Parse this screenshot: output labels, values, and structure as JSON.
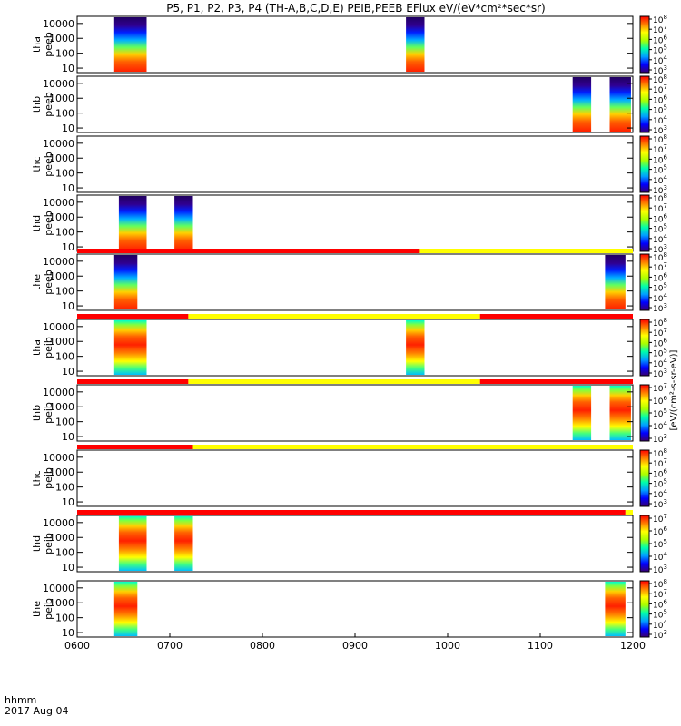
{
  "title": "P5, P1, P2, P3, P4 (TH-A,B,C,D,E) PEIB,PEEB EFlux eV/(eV*cm²*sec*sr)",
  "colorbar_unit_label": "[eV/(cm²-s-sr-eV)]",
  "time_axis": {
    "ticks": [
      "0600",
      "0700",
      "0800",
      "0900",
      "1000",
      "1100",
      "1200"
    ],
    "footer_label": "hhmm",
    "date_label": "2017 Aug 04"
  },
  "y_axis": {
    "ticks": [
      "10",
      "100",
      "1000",
      "10000"
    ],
    "scale": "log"
  },
  "chart_data": [
    {
      "type": "heatmap",
      "probe": "tha",
      "instrument": "peeb",
      "ylabel_line1": "tha",
      "ylabel_line2": "peeb",
      "xlim": [
        600,
        1200
      ],
      "ylim": [
        5,
        30000
      ],
      "y_scale": "log",
      "cbar_exponents": [
        3,
        4,
        5,
        6,
        7,
        8
      ],
      "bursts": [
        [
          640,
          675
        ],
        [
          955,
          975
        ]
      ],
      "mode_bar": null
    },
    {
      "type": "heatmap",
      "probe": "thb",
      "instrument": "peeb",
      "ylabel_line1": "thb",
      "ylabel_line2": "peeb",
      "xlim": [
        600,
        1200
      ],
      "ylim": [
        5,
        30000
      ],
      "y_scale": "log",
      "cbar_exponents": [
        3,
        4,
        5,
        6,
        7,
        8
      ],
      "bursts": [
        [
          1135,
          1155
        ],
        [
          1175,
          1198
        ]
      ],
      "mode_bar": null
    },
    {
      "type": "heatmap",
      "probe": "thc",
      "instrument": "peeb",
      "ylabel_line1": "thc",
      "ylabel_line2": "peeb",
      "xlim": [
        600,
        1200
      ],
      "ylim": [
        5,
        30000
      ],
      "y_scale": "log",
      "cbar_exponents": [
        3,
        4,
        5,
        6,
        7,
        8
      ],
      "bursts": [],
      "mode_bar": null
    },
    {
      "type": "heatmap",
      "probe": "thd",
      "instrument": "peeb",
      "ylabel_line1": "thd",
      "ylabel_line2": "peeb",
      "xlim": [
        600,
        1200
      ],
      "ylim": [
        5,
        30000
      ],
      "y_scale": "log",
      "cbar_exponents": [
        3,
        4,
        5,
        6,
        7,
        8
      ],
      "bursts": [
        [
          645,
          675
        ],
        [
          705,
          725
        ]
      ],
      "mode_bar": null
    },
    {
      "type": "heatmap",
      "probe": "the",
      "instrument": "peeb",
      "ylabel_line1": "the",
      "ylabel_line2": "peeb",
      "xlim": [
        600,
        1200
      ],
      "ylim": [
        5,
        30000
      ],
      "y_scale": "log",
      "cbar_exponents": [
        3,
        4,
        5,
        6,
        7,
        8
      ],
      "bursts": [
        [
          640,
          665
        ],
        [
          1170,
          1192
        ]
      ],
      "mode_bar": [
        {
          "from": 600,
          "to": 970,
          "color": "#ff0000"
        },
        {
          "from": 970,
          "to": 1200,
          "color": "#ffff00"
        }
      ]
    },
    {
      "type": "heatmap",
      "probe": "tha",
      "instrument": "peib",
      "ylabel_line1": "tha",
      "ylabel_line2": "peib",
      "xlim": [
        600,
        1200
      ],
      "ylim": [
        5,
        30000
      ],
      "y_scale": "log",
      "cbar_exponents": [
        3,
        4,
        5,
        6,
        7,
        8
      ],
      "bursts": [
        [
          640,
          675
        ],
        [
          955,
          975
        ]
      ],
      "mode_bar": [
        {
          "from": 600,
          "to": 720,
          "color": "#ff0000"
        },
        {
          "from": 720,
          "to": 1035,
          "color": "#ffff00"
        },
        {
          "from": 1035,
          "to": 1200,
          "color": "#ff0000"
        }
      ]
    },
    {
      "type": "heatmap",
      "probe": "thb",
      "instrument": "peib",
      "ylabel_line1": "thb",
      "ylabel_line2": "peib",
      "xlim": [
        600,
        1200
      ],
      "ylim": [
        5,
        30000
      ],
      "y_scale": "log",
      "cbar_exponents": [
        3,
        4,
        5,
        6,
        7
      ],
      "bursts": [
        [
          1135,
          1155
        ],
        [
          1175,
          1198
        ]
      ],
      "mode_bar": [
        {
          "from": 600,
          "to": 720,
          "color": "#ff0000"
        },
        {
          "from": 720,
          "to": 1035,
          "color": "#ffff00"
        },
        {
          "from": 1035,
          "to": 1200,
          "color": "#ff0000"
        }
      ]
    },
    {
      "type": "heatmap",
      "probe": "thc",
      "instrument": "peib",
      "ylabel_line1": "thc",
      "ylabel_line2": "peib",
      "xlim": [
        600,
        1200
      ],
      "ylim": [
        5,
        30000
      ],
      "y_scale": "log",
      "cbar_exponents": [
        3,
        4,
        5,
        6,
        7,
        8
      ],
      "bursts": [],
      "mode_bar": [
        {
          "from": 600,
          "to": 725,
          "color": "#ff0000"
        },
        {
          "from": 725,
          "to": 1200,
          "color": "#ffff00"
        }
      ]
    },
    {
      "type": "heatmap",
      "probe": "thd",
      "instrument": "peib",
      "ylabel_line1": "thd",
      "ylabel_line2": "peib",
      "xlim": [
        600,
        1200
      ],
      "ylim": [
        5,
        30000
      ],
      "y_scale": "log",
      "cbar_exponents": [
        3,
        4,
        5,
        6,
        7
      ],
      "bursts": [
        [
          645,
          675
        ],
        [
          705,
          725
        ]
      ],
      "mode_bar": [
        {
          "from": 600,
          "to": 1192,
          "color": "#ff0000"
        },
        {
          "from": 1192,
          "to": 1200,
          "color": "#ffff00"
        }
      ]
    },
    {
      "type": "heatmap",
      "probe": "the",
      "instrument": "peib",
      "ylabel_line1": "the",
      "ylabel_line2": "peib",
      "xlim": [
        600,
        1200
      ],
      "ylim": [
        5,
        30000
      ],
      "y_scale": "log",
      "cbar_exponents": [
        3,
        4,
        5,
        6,
        7,
        8
      ],
      "bursts": [
        [
          640,
          665
        ],
        [
          1170,
          1192
        ]
      ],
      "mode_bar": null
    }
  ],
  "colors": {
    "colormap": [
      "#3a0070",
      "#0000ff",
      "#00a0ff",
      "#00ffaa",
      "#aaff00",
      "#ffff00",
      "#ff8000",
      "#ff0000"
    ]
  }
}
